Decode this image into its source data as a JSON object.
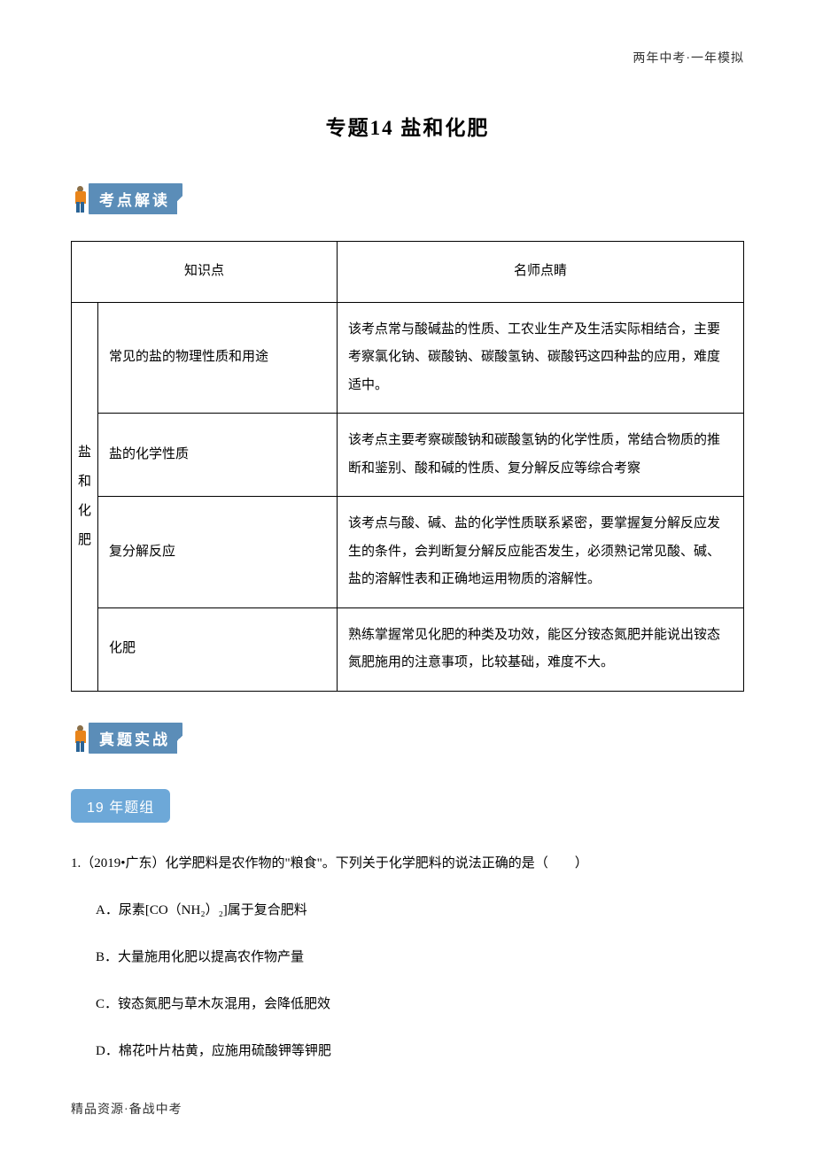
{
  "header": {
    "right_text": "两年中考·一年模拟"
  },
  "title": "专题14 盐和化肥",
  "badges": {
    "kaodian": "考点解读",
    "zhenti": "真题实战",
    "year_group": "19 年题组"
  },
  "table": {
    "headers": {
      "knowledge": "知识点",
      "tips": "名师点睛"
    },
    "category": "盐和化肥",
    "rows": [
      {
        "topic": "常见的盐的物理性质和用途",
        "tip": "该考点常与酸碱盐的性质、工农业生产及生活实际相结合，主要考察氯化钠、碳酸钠、碳酸氢钠、碳酸钙这四种盐的应用，难度适中。"
      },
      {
        "topic": "盐的化学性质",
        "tip": "该考点主要考察碳酸钠和碳酸氢钠的化学性质，常结合物质的推断和鉴别、酸和碱的性质、复分解反应等综合考察"
      },
      {
        "topic": "复分解反应",
        "tip": "该考点与酸、碱、盐的化学性质联系紧密，要掌握复分解反应发生的条件，会判断复分解反应能否发生，必须熟记常见酸、碱、盐的溶解性表和正确地运用物质的溶解性。"
      },
      {
        "topic": "化肥",
        "tip": "熟练掌握常见化肥的种类及功效，能区分铵态氮肥并能说出铵态氮肥施用的注意事项，比较基础，难度不大。"
      }
    ]
  },
  "question": {
    "number": "1.",
    "source": "（2019•广东）",
    "stem": "化学肥料是农作物的\"粮食\"。下列关于化学肥料的说法正确的是（　　）",
    "options": [
      {
        "label": "A．",
        "text": "尿素[CO（NH₂）₂]属于复合肥料"
      },
      {
        "label": "B．",
        "text": "大量施用化肥以提高农作物产量"
      },
      {
        "label": "C．",
        "text": "铵态氮肥与草木灰混用，会降低肥效"
      },
      {
        "label": "D．",
        "text": "棉花叶片枯黄，应施用硫酸钾等钾肥"
      }
    ]
  },
  "footer": {
    "left_text": "精品资源·备战中考"
  },
  "colors": {
    "badge_bg": "#5b8db8",
    "year_badge_bg": "#6da8d8",
    "text": "#000000",
    "border": "#000000"
  }
}
